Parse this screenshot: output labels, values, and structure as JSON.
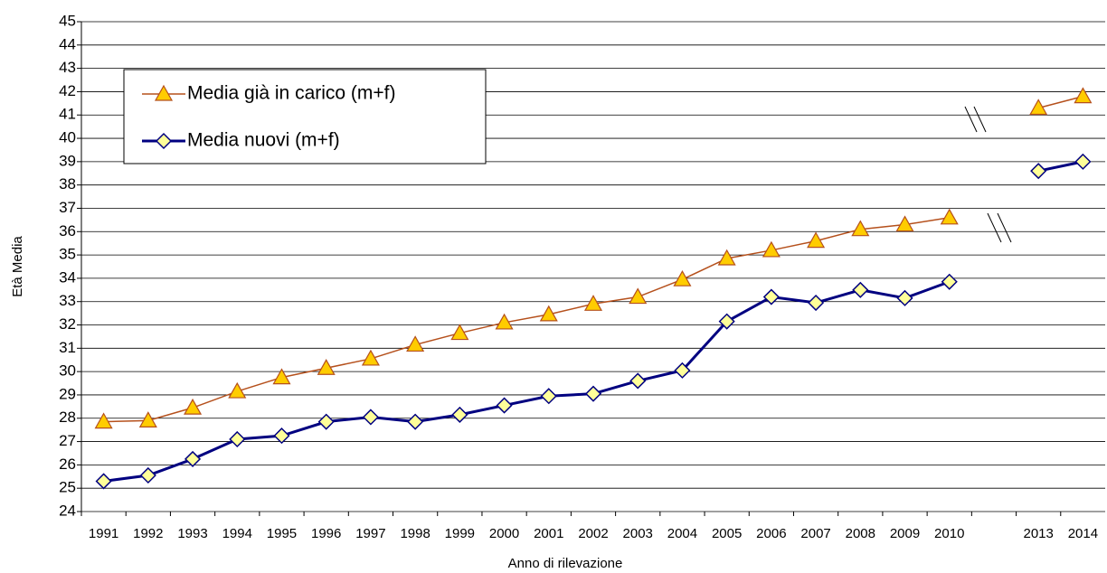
{
  "chart_data": {
    "type": "line",
    "y_label": "Età Media",
    "x_label": "Anno di rilevazione",
    "categories": [
      "1991",
      "1992",
      "1993",
      "1994",
      "1995",
      "1996",
      "1997",
      "1998",
      "1999",
      "2000",
      "2001",
      "2002",
      "2003",
      "2004",
      "2005",
      "2006",
      "2007",
      "2008",
      "2009",
      "2010",
      null,
      "2013",
      "2014"
    ],
    "series": [
      {
        "name": "Media già in carico (m+f)",
        "color": "#b5501c",
        "marker": "triangle",
        "values": [
          27.85,
          27.9,
          28.45,
          29.15,
          29.75,
          30.15,
          30.55,
          31.15,
          31.65,
          32.1,
          32.45,
          32.9,
          33.2,
          33.95,
          34.85,
          35.2,
          35.6,
          36.1,
          36.3,
          36.6,
          null,
          41.3,
          41.8
        ]
      },
      {
        "name": "Media nuovi (m+f)",
        "color": "#000080",
        "marker": "diamond",
        "values": [
          25.3,
          25.55,
          26.25,
          27.1,
          27.25,
          27.85,
          28.05,
          27.85,
          28.15,
          28.55,
          28.95,
          29.05,
          29.6,
          30.05,
          32.15,
          33.2,
          32.95,
          33.5,
          33.15,
          33.85,
          null,
          38.6,
          39.0
        ]
      }
    ],
    "ylim": [
      24,
      45
    ],
    "yticks": [
      24,
      25,
      26,
      27,
      28,
      29,
      30,
      31,
      32,
      33,
      34,
      35,
      36,
      37,
      38,
      39,
      40,
      41,
      42,
      43,
      44,
      45
    ],
    "grid": true,
    "legend": "upper left"
  }
}
